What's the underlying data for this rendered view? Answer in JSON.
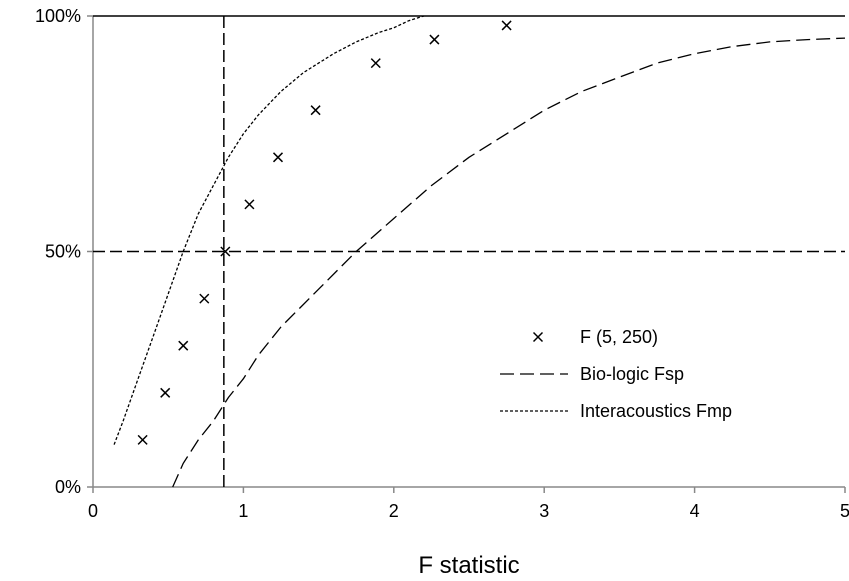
{
  "chart_data": {
    "type": "scatter",
    "xlabel": "F statistic",
    "ylabel": "",
    "xlim": [
      0,
      5
    ],
    "ylim": [
      0,
      100
    ],
    "x_ticks": [
      0,
      1,
      2,
      3,
      4,
      5
    ],
    "x_tick_labels": [
      "0",
      "1",
      "2",
      "3",
      "4",
      "5"
    ],
    "y_ticks": [
      0,
      50,
      100
    ],
    "y_tick_labels": [
      "0%",
      "50%",
      "100%"
    ],
    "grid": false,
    "legend_position": "bottom-right",
    "reference_lines": [
      {
        "orientation": "vertical",
        "x": 0.87
      },
      {
        "orientation": "horizontal",
        "y": 50
      }
    ],
    "series": [
      {
        "name": "F (5, 250)",
        "style": "x-marker",
        "x": [
          0.33,
          0.48,
          0.6,
          0.74,
          0.88,
          1.04,
          1.23,
          1.48,
          1.88,
          2.27,
          2.75
        ],
        "y": [
          10,
          20,
          30,
          40,
          50,
          60,
          70,
          80,
          90,
          95,
          98
        ]
      },
      {
        "name": "Bio-logic Fsp",
        "style": "long-dash",
        "x": [
          0.53,
          0.6,
          0.7,
          0.8,
          0.9,
          1.0,
          1.1,
          1.25,
          1.5,
          1.75,
          2.0,
          2.25,
          2.5,
          2.75,
          3.0,
          3.25,
          3.5,
          3.75,
          4.0,
          4.25,
          4.5,
          4.75,
          5.0
        ],
        "y": [
          0,
          5,
          10,
          14,
          19,
          23,
          28,
          34,
          42,
          50,
          57,
          64,
          70,
          75,
          80,
          84,
          87,
          90,
          92,
          93.5,
          94.5,
          95,
          95.3
        ]
      },
      {
        "name": "Interacoustics Fmp",
        "style": "short-dash",
        "x": [
          0.14,
          0.2,
          0.3,
          0.4,
          0.5,
          0.6,
          0.7,
          0.8,
          0.9,
          1.0,
          1.1,
          1.25,
          1.4,
          1.5,
          1.6,
          1.75,
          1.9,
          2.0,
          2.1,
          2.2
        ],
        "y": [
          9,
          14,
          23,
          32,
          41,
          50,
          58,
          64,
          70,
          75,
          79,
          84,
          88,
          90,
          92,
          94.5,
          96.5,
          97.5,
          99,
          100
        ]
      }
    ]
  }
}
